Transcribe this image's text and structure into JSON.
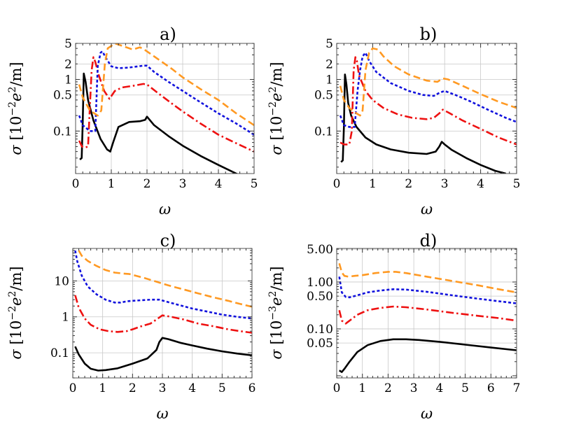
{
  "chart_data": [
    {
      "type": "line",
      "title": "a)",
      "xlabel": "ω",
      "ylabel": "σ [10−2e2/m]",
      "ylabel_parts": [
        "σ [10",
        "−2",
        "e",
        "2",
        "/m]"
      ],
      "xscale": "linear",
      "yscale": "log",
      "xlim": [
        0,
        5
      ],
      "ylim": [
        0.015,
        5
      ],
      "xticks": [
        0,
        1,
        2,
        3,
        4,
        5
      ],
      "xtick_labels": [
        "0",
        "1",
        "2",
        "3",
        "4",
        "5"
      ],
      "yticks": [
        0.1,
        0.5,
        1,
        2,
        5
      ],
      "ytick_labels": [
        "0.1",
        "0.5",
        "1",
        "2",
        "5"
      ],
      "grid": true,
      "series": [
        {
          "name": "black solid",
          "color": "#000000",
          "dash": "solid",
          "x": [
            0.12,
            0.17,
            0.2,
            0.23,
            0.28,
            0.35,
            0.5,
            0.7,
            0.88,
            0.97,
            1.05,
            1.2,
            1.5,
            1.8,
            1.95,
            2.0,
            2.2,
            2.6,
            3.0,
            3.5,
            4.0,
            4.5,
            4.9
          ],
          "y": [
            0.028,
            0.03,
            0.15,
            1.3,
            0.9,
            0.4,
            0.16,
            0.07,
            0.044,
            0.04,
            0.06,
            0.12,
            0.15,
            0.155,
            0.165,
            0.19,
            0.13,
            0.08,
            0.052,
            0.033,
            0.022,
            0.015,
            0.011
          ]
        },
        {
          "name": "red dash-dot",
          "color": "#ee1111",
          "dash": "dashdot",
          "x": [
            0.1,
            0.18,
            0.25,
            0.35,
            0.4,
            0.45,
            0.5,
            0.55,
            0.65,
            0.8,
            0.95,
            1.1,
            1.3,
            1.6,
            1.9,
            2.0,
            2.3,
            2.7,
            3.0,
            3.5,
            4.0,
            4.5,
            5.0
          ],
          "y": [
            0.065,
            0.05,
            0.048,
            0.05,
            0.3,
            1.5,
            2.7,
            2.2,
            1.2,
            0.6,
            0.42,
            0.6,
            0.7,
            0.75,
            0.82,
            0.8,
            0.55,
            0.34,
            0.24,
            0.14,
            0.085,
            0.058,
            0.04
          ]
        },
        {
          "name": "blue dotted",
          "color": "#1111dd",
          "dash": "dotted",
          "x": [
            0.1,
            0.2,
            0.4,
            0.55,
            0.62,
            0.7,
            0.75,
            0.85,
            1.0,
            1.2,
            1.5,
            1.9,
            2.0,
            2.2,
            2.6,
            3.0,
            3.5,
            4.0,
            4.5,
            5.0
          ],
          "y": [
            0.2,
            0.13,
            0.1,
            0.1,
            1.8,
            3.3,
            3.5,
            2.6,
            1.8,
            1.65,
            1.7,
            1.85,
            1.85,
            1.4,
            0.9,
            0.6,
            0.36,
            0.22,
            0.14,
            0.085
          ]
        },
        {
          "name": "orange dashed",
          "color": "#ff9922",
          "dash": "dashed",
          "x": [
            0.1,
            0.2,
            0.4,
            0.62,
            0.72,
            0.82,
            0.9,
            1.1,
            1.3,
            1.6,
            1.8,
            1.9,
            2.0,
            2.3,
            2.7,
            3.0,
            3.5,
            4.0,
            4.5,
            5.0
          ],
          "y": [
            0.8,
            0.45,
            0.25,
            0.2,
            0.25,
            2.0,
            4.0,
            5.0,
            4.5,
            3.8,
            4.2,
            3.9,
            3.5,
            2.5,
            1.6,
            1.1,
            0.65,
            0.4,
            0.22,
            0.13
          ]
        }
      ]
    },
    {
      "type": "line",
      "title": "b)",
      "xlabel": "ω",
      "ylabel": "σ [10−2e2/m]",
      "ylabel_parts": [
        "σ [10",
        "−2",
        "e",
        "2",
        "/m]"
      ],
      "xscale": "linear",
      "yscale": "log",
      "xlim": [
        0,
        5
      ],
      "ylim": [
        0.015,
        5
      ],
      "xticks": [
        0,
        1,
        2,
        3,
        4,
        5
      ],
      "xtick_labels": [
        "0",
        "1",
        "2",
        "3",
        "4",
        "5"
      ],
      "yticks": [
        0.1,
        0.5,
        1,
        2,
        5
      ],
      "ytick_labels": [
        "0.1",
        "0.5",
        "1",
        "2",
        "5"
      ],
      "grid": true,
      "series": [
        {
          "name": "black solid",
          "color": "#000000",
          "dash": "solid",
          "x": [
            0.12,
            0.17,
            0.2,
            0.23,
            0.27,
            0.32,
            0.4,
            0.55,
            0.8,
            1.1,
            1.5,
            2.0,
            2.5,
            2.75,
            2.85,
            2.92,
            3.0,
            3.2,
            3.6,
            4.0,
            4.4,
            4.7
          ],
          "y": [
            0.025,
            0.027,
            0.12,
            1.25,
            0.8,
            0.35,
            0.2,
            0.12,
            0.075,
            0.055,
            0.044,
            0.038,
            0.036,
            0.04,
            0.05,
            0.062,
            0.055,
            0.043,
            0.03,
            0.022,
            0.017,
            0.015
          ]
        },
        {
          "name": "red dash-dot",
          "color": "#ee1111",
          "dash": "dashdot",
          "x": [
            0.1,
            0.2,
            0.35,
            0.42,
            0.47,
            0.52,
            0.56,
            0.62,
            0.8,
            1.0,
            1.3,
            1.7,
            2.1,
            2.5,
            2.7,
            2.85,
            2.95,
            3.1,
            3.5,
            4.0,
            4.5,
            5.0
          ],
          "y": [
            0.06,
            0.055,
            0.055,
            0.1,
            1.5,
            2.7,
            2.3,
            1.2,
            0.6,
            0.4,
            0.28,
            0.21,
            0.18,
            0.17,
            0.18,
            0.22,
            0.26,
            0.23,
            0.16,
            0.11,
            0.075,
            0.055
          ]
        },
        {
          "name": "blue dotted",
          "color": "#1111dd",
          "dash": "dotted",
          "x": [
            0.1,
            0.2,
            0.35,
            0.5,
            0.58,
            0.65,
            0.72,
            0.8,
            0.9,
            1.1,
            1.5,
            2.0,
            2.4,
            2.7,
            2.85,
            3.0,
            3.3,
            3.7,
            4.2,
            4.7,
            5.0
          ],
          "y": [
            0.2,
            0.13,
            0.12,
            0.12,
            0.6,
            1.5,
            2.8,
            3.3,
            2.3,
            1.4,
            0.85,
            0.6,
            0.5,
            0.48,
            0.55,
            0.6,
            0.5,
            0.38,
            0.26,
            0.18,
            0.15
          ]
        },
        {
          "name": "orange dashed",
          "color": "#ff9922",
          "dash": "dashed",
          "x": [
            0.1,
            0.2,
            0.35,
            0.55,
            0.65,
            0.72,
            0.8,
            0.9,
            1.0,
            1.15,
            1.3,
            1.6,
            2.0,
            2.5,
            2.8,
            2.95,
            3.1,
            3.5,
            4.0,
            4.5,
            5.0
          ],
          "y": [
            0.75,
            0.4,
            0.28,
            0.22,
            0.2,
            0.25,
            1.5,
            3.3,
            4.0,
            3.8,
            2.8,
            1.8,
            1.25,
            0.95,
            0.9,
            1.05,
            1.0,
            0.75,
            0.52,
            0.37,
            0.28
          ]
        }
      ]
    },
    {
      "type": "line",
      "title": "c)",
      "xlabel": "ω",
      "ylabel": "σ [10−2e2/m]",
      "ylabel_parts": [
        "σ [10",
        "−2",
        "e",
        "2",
        "/m]"
      ],
      "xscale": "linear",
      "yscale": "log",
      "xlim": [
        0,
        6
      ],
      "ylim": [
        0.02,
        80
      ],
      "xticks": [
        0,
        1,
        2,
        3,
        4,
        5,
        6
      ],
      "xtick_labels": [
        "0",
        "1",
        "2",
        "3",
        "4",
        "5",
        "6"
      ],
      "yticks": [
        0.1,
        1,
        10
      ],
      "ytick_labels": [
        "0.1",
        "1",
        "10"
      ],
      "grid": true,
      "series": [
        {
          "name": "black solid",
          "color": "#000000",
          "dash": "solid",
          "x": [
            0.08,
            0.2,
            0.4,
            0.6,
            0.85,
            1.1,
            1.5,
            2.0,
            2.5,
            2.8,
            2.9,
            3.0,
            3.2,
            3.6,
            4.0,
            4.5,
            5.0,
            5.5,
            6.0
          ],
          "y": [
            0.15,
            0.09,
            0.05,
            0.036,
            0.032,
            0.033,
            0.037,
            0.05,
            0.07,
            0.12,
            0.2,
            0.26,
            0.24,
            0.19,
            0.16,
            0.13,
            0.11,
            0.095,
            0.085
          ]
        },
        {
          "name": "red dash-dot",
          "color": "#ee1111",
          "dash": "dashdot",
          "x": [
            0.08,
            0.2,
            0.4,
            0.6,
            0.9,
            1.2,
            1.5,
            1.8,
            2.0,
            2.3,
            2.6,
            2.85,
            3.0,
            3.3,
            3.7,
            4.2,
            4.7,
            5.2,
            5.6,
            6.0
          ],
          "y": [
            4.0,
            1.8,
            0.9,
            0.6,
            0.45,
            0.4,
            0.38,
            0.4,
            0.45,
            0.55,
            0.65,
            0.9,
            1.1,
            1.0,
            0.85,
            0.65,
            0.55,
            0.45,
            0.4,
            0.36
          ]
        },
        {
          "name": "blue dotted",
          "color": "#1111dd",
          "dash": "dotted",
          "x": [
            0.08,
            0.15,
            0.3,
            0.5,
            0.8,
            1.1,
            1.4,
            1.6,
            1.8,
            2.0,
            2.3,
            2.6,
            2.9,
            3.1,
            3.5,
            4.0,
            4.5,
            5.0,
            5.5,
            6.0
          ],
          "y": [
            70.0,
            35.0,
            14.0,
            7.0,
            4.2,
            3.0,
            2.5,
            2.5,
            2.7,
            2.8,
            2.9,
            3.0,
            3.0,
            2.7,
            2.2,
            1.7,
            1.4,
            1.15,
            1.0,
            0.9
          ]
        },
        {
          "name": "orange dashed",
          "color": "#ff9922",
          "dash": "dashed",
          "x": [
            0.2,
            0.3,
            0.5,
            0.8,
            1.1,
            1.4,
            1.7,
            1.9,
            2.1,
            2.4,
            2.8,
            3.2,
            3.7,
            4.2,
            4.7,
            5.2,
            5.6,
            6.0
          ],
          "y": [
            70.0,
            50.0,
            36.0,
            26.0,
            20.0,
            17.0,
            16.0,
            15.5,
            14.0,
            12.0,
            9.5,
            7.5,
            5.8,
            4.5,
            3.5,
            2.8,
            2.3,
            1.9
          ]
        }
      ]
    },
    {
      "type": "line",
      "title": "d)",
      "xlabel": "ω",
      "ylabel": "σ [10−3e2/m]",
      "ylabel_parts": [
        "σ [10",
        "−3",
        "e",
        "2",
        "/m]"
      ],
      "xscale": "linear",
      "yscale": "log",
      "xlim": [
        0,
        7
      ],
      "ylim": [
        0.009,
        5.2
      ],
      "xticks": [
        0,
        1,
        2,
        3,
        4,
        5,
        6,
        7
      ],
      "xtick_labels": [
        "0",
        "1",
        "2",
        "3",
        "4",
        "5",
        "6",
        "7"
      ],
      "yticks": [
        0.05,
        0.1,
        0.5,
        1,
        5
      ],
      "ytick_labels": [
        "0.05",
        "0.10",
        "0.50",
        "1.00",
        "5.00"
      ],
      "grid": true,
      "series": [
        {
          "name": "black solid",
          "color": "#000000",
          "dash": "solid",
          "x": [
            0.1,
            0.2,
            0.3,
            0.5,
            0.8,
            1.2,
            1.7,
            2.2,
            2.7,
            3.2,
            4.0,
            5.0,
            6.0,
            7.0
          ],
          "y": [
            0.013,
            0.012,
            0.014,
            0.02,
            0.032,
            0.045,
            0.055,
            0.06,
            0.06,
            0.058,
            0.053,
            0.046,
            0.04,
            0.035
          ]
        },
        {
          "name": "red dash-dot",
          "color": "#ee1111",
          "dash": "dashdot",
          "x": [
            0.1,
            0.2,
            0.35,
            0.5,
            0.8,
            1.2,
            1.7,
            2.2,
            2.7,
            3.5,
            4.5,
            5.5,
            6.3,
            7.0
          ],
          "y": [
            0.25,
            0.15,
            0.13,
            0.15,
            0.2,
            0.25,
            0.28,
            0.3,
            0.29,
            0.26,
            0.22,
            0.19,
            0.17,
            0.15
          ]
        },
        {
          "name": "blue dotted",
          "color": "#1111dd",
          "dash": "dotted",
          "x": [
            0.1,
            0.2,
            0.35,
            0.5,
            0.8,
            1.2,
            1.7,
            2.2,
            2.7,
            3.5,
            4.5,
            5.5,
            6.3,
            7.0
          ],
          "y": [
            1.3,
            0.6,
            0.48,
            0.47,
            0.52,
            0.6,
            0.66,
            0.7,
            0.69,
            0.62,
            0.52,
            0.44,
            0.39,
            0.35
          ]
        },
        {
          "name": "orange dashed",
          "color": "#ff9922",
          "dash": "dashed",
          "x": [
            0.1,
            0.2,
            0.3,
            0.45,
            0.7,
            1.0,
            1.5,
            2.0,
            2.3,
            2.7,
            3.5,
            4.5,
            5.5,
            6.3,
            7.0
          ],
          "y": [
            2.5,
            1.6,
            1.35,
            1.3,
            1.35,
            1.4,
            1.55,
            1.65,
            1.65,
            1.55,
            1.3,
            1.05,
            0.85,
            0.7,
            0.6
          ]
        }
      ]
    }
  ]
}
